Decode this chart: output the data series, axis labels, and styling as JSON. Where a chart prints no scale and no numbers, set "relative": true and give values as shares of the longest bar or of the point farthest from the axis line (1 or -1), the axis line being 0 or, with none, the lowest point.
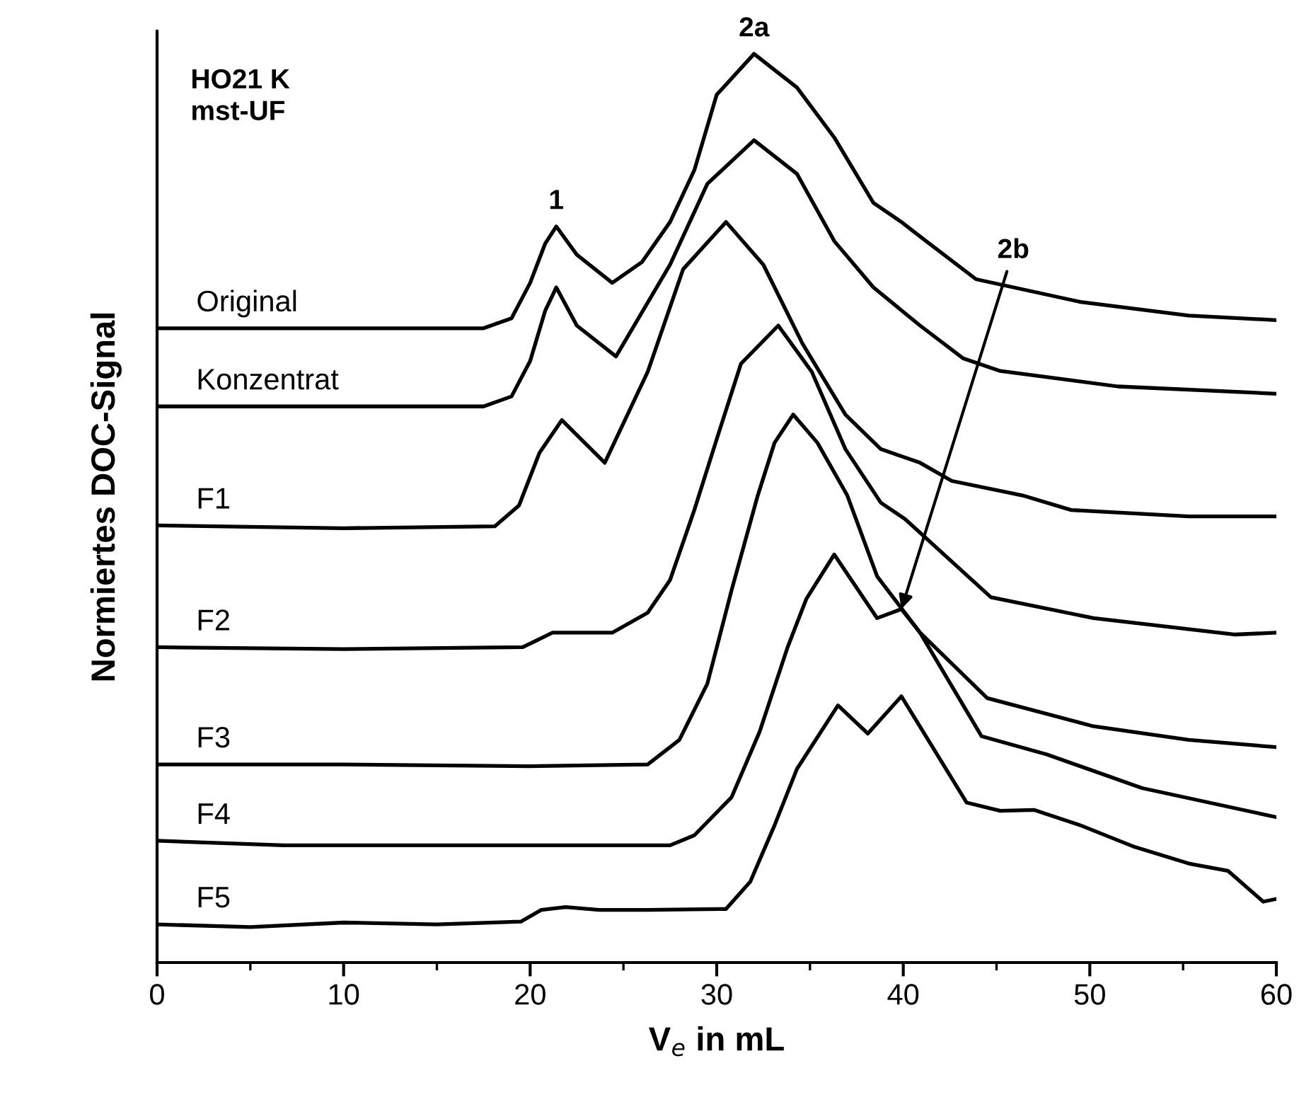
{
  "chart_data": {
    "type": "line",
    "relative": true,
    "xlabel": "V$_{e}$ in mL",
    "ylabel": "Normiertes DOC-Signal",
    "xlim": [
      0,
      60
    ],
    "xticks": [
      0,
      10,
      20,
      30,
      40,
      50,
      60
    ],
    "grid": false,
    "marker": "none",
    "line_style": "solid",
    "annotations": [
      "HO21 K\nmst-UF",
      {
        "text": "1",
        "x": 21.4,
        "y": 0.81
      },
      {
        "text": "2a",
        "x": 32,
        "y": 1.0
      },
      {
        "text": "2b",
        "x": 39.9,
        "y": 0.389
      }
    ],
    "series": [
      {
        "name": "Original",
        "color": "#000000",
        "x": [
          0,
          10,
          17.5,
          19,
          20,
          20.8,
          21.4,
          22.5,
          24.4,
          26,
          27.5,
          28.8,
          30,
          32,
          34.3,
          36.3,
          38.4,
          39.9,
          40.9,
          43.9,
          49.5,
          55.3,
          60
        ],
        "values": [
          0.698,
          0.698,
          0.698,
          0.709,
          0.748,
          0.791,
          0.81,
          0.779,
          0.748,
          0.771,
          0.815,
          0.872,
          0.955,
          1.0,
          0.963,
          0.908,
          0.836,
          0.815,
          0.799,
          0.752,
          0.727,
          0.712,
          0.707
        ]
      },
      {
        "name": "Konzentrat",
        "color": "#000000",
        "x": [
          0,
          10,
          17.5,
          19,
          20,
          20.8,
          21.4,
          22.5,
          24.6,
          27.5,
          29.5,
          32,
          34.3,
          36.3,
          38.4,
          40.9,
          43.2,
          45.2,
          51.5,
          60
        ],
        "values": [
          0.612,
          0.612,
          0.612,
          0.623,
          0.662,
          0.717,
          0.743,
          0.701,
          0.667,
          0.768,
          0.857,
          0.905,
          0.868,
          0.794,
          0.743,
          0.701,
          0.665,
          0.651,
          0.634,
          0.626
        ]
      },
      {
        "name": "F1",
        "color": "#000000",
        "x": [
          0,
          10,
          18.1,
          19.4,
          20.5,
          21.7,
          24.0,
          26.3,
          28.2,
          30.5,
          32.5,
          34.6,
          36.9,
          38.8,
          40.9,
          42.6,
          46.4,
          49.0,
          55.3,
          60
        ],
        "values": [
          0.481,
          0.478,
          0.48,
          0.503,
          0.561,
          0.597,
          0.55,
          0.65,
          0.763,
          0.815,
          0.768,
          0.681,
          0.603,
          0.565,
          0.55,
          0.53,
          0.514,
          0.498,
          0.491,
          0.491
        ]
      },
      {
        "name": "F2",
        "color": "#000000",
        "x": [
          0,
          10,
          19.6,
          21.2,
          24.4,
          26.3,
          27.5,
          28.8,
          30.0,
          31.3,
          33.3,
          35.1,
          36.9,
          38.8,
          40.1,
          44.7,
          50.2,
          57.8,
          60
        ],
        "values": [
          0.347,
          0.345,
          0.347,
          0.363,
          0.363,
          0.385,
          0.421,
          0.498,
          0.576,
          0.659,
          0.701,
          0.65,
          0.565,
          0.506,
          0.488,
          0.402,
          0.379,
          0.361,
          0.363
        ]
      },
      {
        "name": "F3",
        "color": "#000000",
        "x": [
          0,
          10,
          20,
          26.3,
          28.0,
          29.5,
          30.8,
          32.2,
          33.1,
          34.1,
          35.4,
          37.0,
          38.6,
          40.9,
          44.5,
          50.2,
          55.3,
          60
        ],
        "values": [
          0.218,
          0.218,
          0.216,
          0.218,
          0.245,
          0.307,
          0.41,
          0.514,
          0.572,
          0.603,
          0.572,
          0.514,
          0.425,
          0.363,
          0.291,
          0.26,
          0.245,
          0.237
        ]
      },
      {
        "name": "F4",
        "color": "#000000",
        "x": [
          0,
          6.8,
          20,
          27.5,
          28.8,
          30.8,
          32.3,
          33.8,
          34.8,
          36.3,
          38.6,
          39.9,
          40.9,
          44.2,
          47.7,
          52.8,
          60
        ],
        "values": [
          0.134,
          0.129,
          0.129,
          0.129,
          0.14,
          0.182,
          0.254,
          0.347,
          0.4,
          0.449,
          0.379,
          0.389,
          0.363,
          0.249,
          0.229,
          0.192,
          0.16
        ]
      },
      {
        "name": "F5",
        "color": "#000000",
        "x": [
          0,
          5,
          10,
          15,
          19.5,
          20.6,
          21.9,
          23.7,
          26.3,
          30.5,
          31.8,
          33.1,
          34.3,
          36.5,
          38.1,
          39.9,
          43.4,
          45.2,
          47.0,
          49.5,
          52.3,
          55.3,
          57.4,
          59.3,
          60
        ],
        "values": [
          0.042,
          0.039,
          0.044,
          0.042,
          0.045,
          0.058,
          0.061,
          0.058,
          0.058,
          0.059,
          0.089,
          0.151,
          0.213,
          0.283,
          0.252,
          0.293,
          0.176,
          0.167,
          0.168,
          0.151,
          0.128,
          0.109,
          0.101,
          0.067,
          0.07
        ]
      }
    ]
  }
}
